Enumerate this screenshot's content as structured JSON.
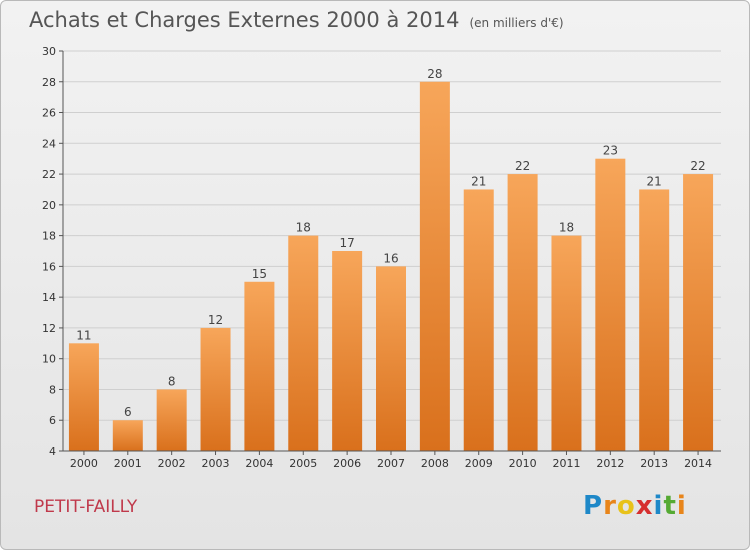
{
  "header": {
    "title": "Achats et Charges Externes 2000 à 2014",
    "unit": "(en milliers d'€)"
  },
  "footer": {
    "commune": "PETIT-FAILLY",
    "logo_letters": [
      "P",
      "r",
      "o",
      "x",
      "i",
      "t",
      "i"
    ],
    "logo_colors": [
      "#1e88c8",
      "#e8851a",
      "#e8c21a",
      "#d62f2f",
      "#1e88c8",
      "#55aa33",
      "#e8851a"
    ]
  },
  "colors": {
    "bar_top": "#f7a65a",
    "bar_bottom": "#d9701c",
    "grid": "#cfcfcf"
  },
  "chart_data": {
    "type": "bar",
    "title": "Achats et Charges Externes 2000 à 2014",
    "subtitle": "(en milliers d'€)",
    "categories": [
      "2000",
      "2001",
      "2002",
      "2003",
      "2004",
      "2005",
      "2006",
      "2007",
      "2008",
      "2009",
      "2010",
      "2011",
      "2012",
      "2013",
      "2014"
    ],
    "values": [
      11,
      6,
      8,
      12,
      15,
      18,
      17,
      16,
      28,
      21,
      22,
      18,
      23,
      21,
      22
    ],
    "yticks": [
      4,
      6,
      8,
      10,
      12,
      14,
      16,
      18,
      20,
      22,
      24,
      26,
      28,
      30
    ],
    "ylim": [
      4,
      30
    ],
    "grid": true
  }
}
